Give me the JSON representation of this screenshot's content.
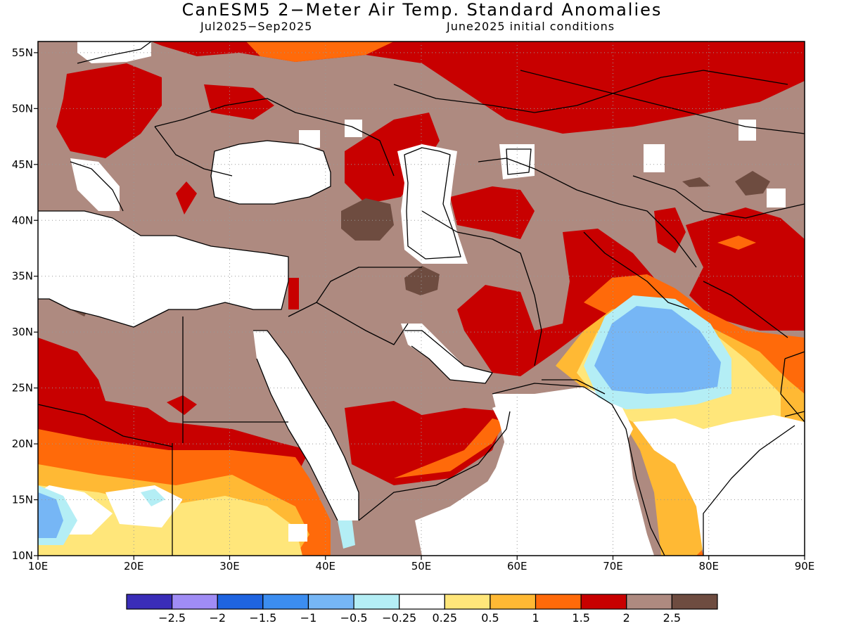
{
  "title": "CanESM5 2−Meter Air Temp. Standard Anomalies",
  "subtitle_left": "Jul2025−Sep2025",
  "subtitle_right": "June2025 initial conditions",
  "map": {
    "lon_range": [
      10,
      90
    ],
    "lat_range": [
      10,
      56
    ],
    "lon_ticks": [
      {
        "value": 10,
        "label": "10E"
      },
      {
        "value": 20,
        "label": "20E"
      },
      {
        "value": 30,
        "label": "30E"
      },
      {
        "value": 40,
        "label": "40E"
      },
      {
        "value": 50,
        "label": "50E"
      },
      {
        "value": 60,
        "label": "60E"
      },
      {
        "value": 70,
        "label": "70E"
      },
      {
        "value": 80,
        "label": "80E"
      },
      {
        "value": 90,
        "label": "90E"
      }
    ],
    "lat_ticks": [
      {
        "value": 10,
        "label": "10N"
      },
      {
        "value": 15,
        "label": "15N"
      },
      {
        "value": 20,
        "label": "20N"
      },
      {
        "value": 25,
        "label": "25N"
      },
      {
        "value": 30,
        "label": "30N"
      },
      {
        "value": 35,
        "label": "35N"
      },
      {
        "value": 40,
        "label": "40N"
      },
      {
        "value": 45,
        "label": "45N"
      },
      {
        "value": 50,
        "label": "50N"
      },
      {
        "value": 55,
        "label": "55N"
      }
    ],
    "grid": "dotted"
  },
  "colorbar": {
    "colors": [
      "#3a2db8",
      "#a08cf5",
      "#1f64e0",
      "#3c8df0",
      "#76b6f5",
      "#b4eef5",
      "#ffffff",
      "#ffe67a",
      "#ffb934",
      "#ff6a0a",
      "#c80000",
      "#ae8a80",
      "#6e4c40"
    ],
    "labels": [
      "−2.5",
      "−2",
      "−1.5",
      "−1",
      "−0.5",
      "−0.25",
      "0.25",
      "0.5",
      "1",
      "1.5",
      "2",
      "2.5"
    ]
  }
}
